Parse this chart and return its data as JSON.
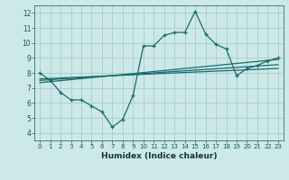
{
  "background_color": "#cce8e8",
  "grid_color": "#aacccc",
  "line_color": "#1a6b6b",
  "xlabel": "Humidex (Indice chaleur)",
  "xlim": [
    -0.5,
    23.5
  ],
  "ylim": [
    3.5,
    12.5
  ],
  "xticks": [
    0,
    1,
    2,
    3,
    4,
    5,
    6,
    7,
    8,
    9,
    10,
    11,
    12,
    13,
    14,
    15,
    16,
    17,
    18,
    19,
    20,
    21,
    22,
    23
  ],
  "yticks": [
    4,
    5,
    6,
    7,
    8,
    9,
    10,
    11,
    12
  ],
  "main_x": [
    0,
    1,
    2,
    3,
    4,
    5,
    6,
    7,
    8,
    9,
    10,
    11,
    12,
    13,
    14,
    15,
    16,
    17,
    18,
    19,
    20,
    21,
    22,
    23
  ],
  "main_y": [
    8.0,
    7.5,
    6.7,
    6.2,
    6.2,
    5.8,
    5.4,
    4.4,
    4.9,
    6.5,
    9.8,
    9.8,
    10.5,
    10.7,
    10.7,
    12.1,
    10.6,
    9.9,
    9.6,
    7.8,
    8.3,
    8.5,
    8.8,
    9.0
  ],
  "line1_x": [
    0,
    23
  ],
  "line1_y": [
    7.6,
    8.3
  ],
  "line2_x": [
    0,
    23
  ],
  "line2_y": [
    7.5,
    8.55
  ],
  "line3_x": [
    0,
    23
  ],
  "line3_y": [
    7.35,
    8.9
  ]
}
